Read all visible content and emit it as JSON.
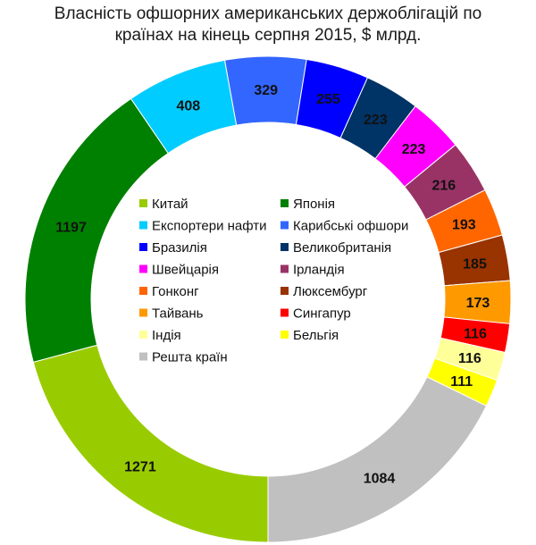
{
  "chart_data": {
    "type": "pie",
    "style": "donut",
    "title_line1": "Власність офшорних американських держоблігацій по",
    "title_line2": "країнах на кінець серпня 2015, $ млрд.",
    "legend_placement": "center",
    "series": [
      {
        "name": "Китай",
        "value": 1271,
        "color": "#99cc00"
      },
      {
        "name": "Японія",
        "value": 1197,
        "color": "#008000"
      },
      {
        "name": "Експортери нафти",
        "value": 408,
        "color": "#00ccff"
      },
      {
        "name": "Карибські офшори",
        "value": 329,
        "color": "#3366ff"
      },
      {
        "name": "Бразилія",
        "value": 255,
        "color": "#0000ff"
      },
      {
        "name": "Великобританія",
        "value": 223,
        "color": "#003366"
      },
      {
        "name": "Швейцарія",
        "value": 223,
        "color": "#ff00ff"
      },
      {
        "name": "Ірландія",
        "value": 216,
        "color": "#993366"
      },
      {
        "name": "Гонконг",
        "value": 193,
        "color": "#ff6600"
      },
      {
        "name": "Люксембург",
        "value": 185,
        "color": "#993300"
      },
      {
        "name": "Тайвань",
        "value": 173,
        "color": "#ff9900"
      },
      {
        "name": "Сингапур",
        "value": 116,
        "color": "#ff0000"
      },
      {
        "name": "Індія",
        "value": 116,
        "color": "#ffff99"
      },
      {
        "name": "Бельгія",
        "value": 111,
        "color": "#ffff00"
      },
      {
        "name": "Решта країн",
        "value": 1084,
        "color": "#c0c0c0"
      }
    ]
  }
}
